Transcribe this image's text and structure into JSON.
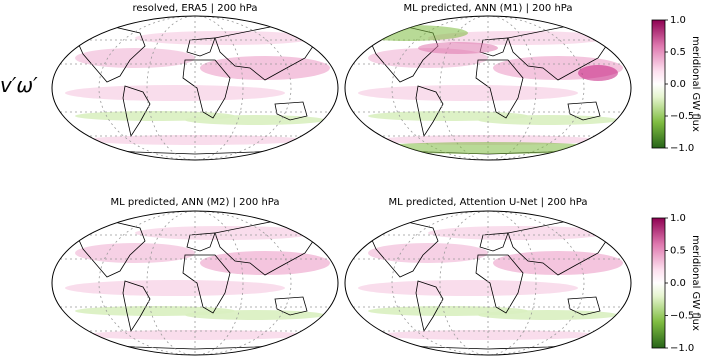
{
  "row_label": "v′ω′",
  "panels": [
    {
      "title": "resolved, ERA5 | 200 hPa"
    },
    {
      "title": "ML predicted, ANN (M1) | 200 hPa"
    },
    {
      "title": "ML predicted, ANN (M2) | 200 hPa"
    },
    {
      "title": "ML predicted, Attention U-Net | 200 hPa"
    }
  ],
  "colorbars": [
    {
      "label": "meridional GW flux",
      "lim": [
        -1,
        1
      ],
      "ticks": [
        {
          "value": -1,
          "label": "−1.0"
        },
        {
          "value": -0.5,
          "label": "−0.5"
        },
        {
          "value": 0,
          "label": "0.0"
        },
        {
          "value": 0.5,
          "label": "0.5"
        },
        {
          "value": 1,
          "label": "1.0"
        }
      ]
    },
    {
      "label": "meridional GW flux",
      "lim": [
        -1,
        1
      ],
      "ticks": [
        {
          "value": -1,
          "label": "−1.0"
        },
        {
          "value": -0.5,
          "label": "−0.5"
        },
        {
          "value": 0,
          "label": "0.0"
        },
        {
          "value": 0.5,
          "label": "0.5"
        },
        {
          "value": 1,
          "label": "1.0"
        }
      ]
    }
  ]
}
